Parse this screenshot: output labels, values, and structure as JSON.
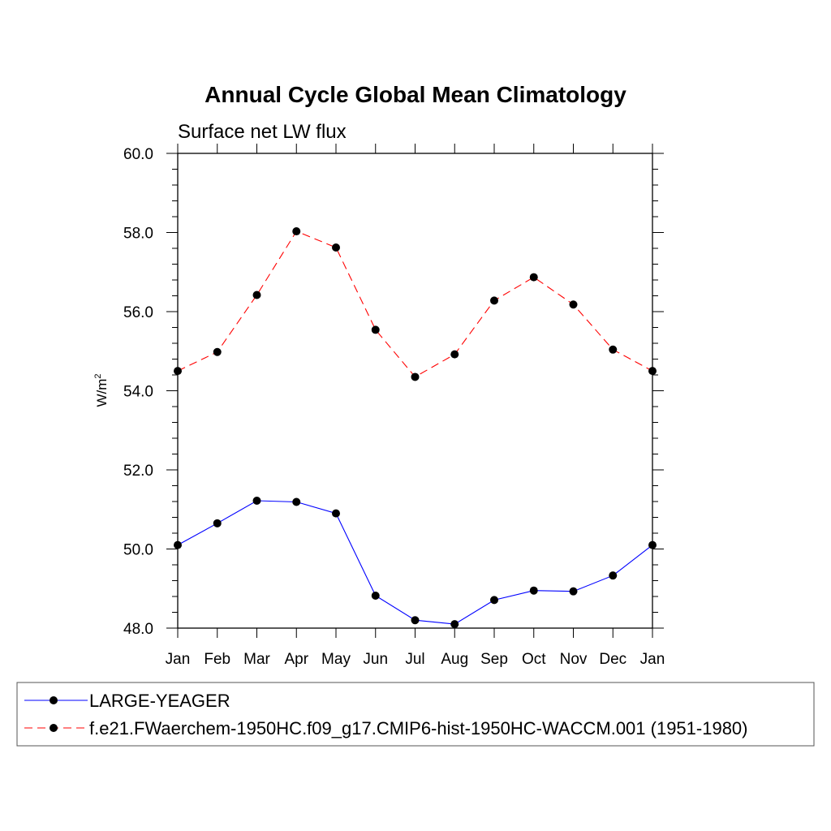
{
  "chart_data": {
    "type": "line",
    "title": "Annual Cycle Global Mean Climatology",
    "subtitle": "Surface net LW flux",
    "ylabel_main": "W/m",
    "ylabel_sup": "2",
    "xlabel": "",
    "categories": [
      "Jan",
      "Feb",
      "Mar",
      "Apr",
      "May",
      "Jun",
      "Jul",
      "Aug",
      "Sep",
      "Oct",
      "Nov",
      "Dec",
      "Jan"
    ],
    "ylim": [
      48.0,
      60.0
    ],
    "yticks": [
      "48.0",
      "50.0",
      "52.0",
      "54.0",
      "56.0",
      "58.0",
      "60.0"
    ],
    "grid": false,
    "legend_position": "bottom",
    "series": [
      {
        "name": "LARGE-YEAGER",
        "color": "#0000ff",
        "dash": "solid",
        "marker": "filled-circle",
        "values": [
          50.1,
          50.65,
          51.22,
          51.19,
          50.9,
          48.82,
          48.2,
          48.1,
          48.71,
          48.95,
          48.93,
          49.33,
          50.1
        ]
      },
      {
        "name": "f.e21.FWaerchem-1950HC.f09_g17.CMIP6-hist-1950HC-WACCM.001 (1951-1980)",
        "color": "#ff0000",
        "dash": "dashed",
        "marker": "filled-circle",
        "values": [
          54.5,
          54.98,
          56.42,
          58.03,
          57.62,
          55.54,
          54.35,
          54.92,
          56.28,
          56.87,
          56.18,
          55.04,
          54.5
        ]
      }
    ]
  }
}
